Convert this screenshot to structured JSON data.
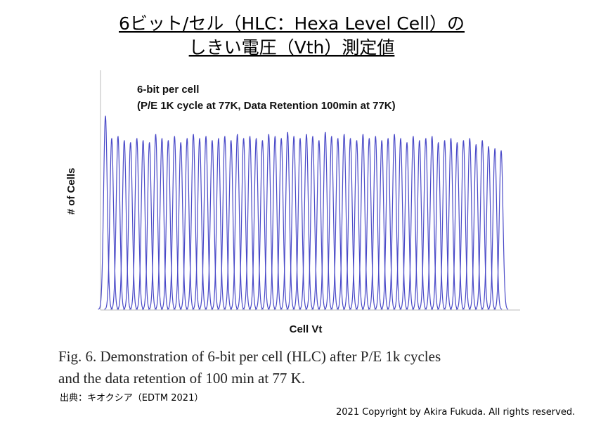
{
  "slide": {
    "title_line1": "6ビット/セル（HLC：Hexa Level Cell）の",
    "title_line2": "しきい電圧（Vth）測定値",
    "caption_line1": "Fig. 6. Demonstration of 6-bit per cell (HLC) after P/E 1k cycles",
    "caption_line2": "and the data retention of 100 min at 77 K.",
    "source": "出典：キオクシア（EDTM 2021）",
    "copyright": "2021 Copyright by Akira Fukuda. All rights reserved."
  },
  "chart_data": {
    "type": "line",
    "title": "6-bit per cell",
    "subtitle": "(P/E 1K cycle at 77K, Data Retention 100min at 77K)",
    "xlabel": "Cell Vt",
    "ylabel": "# of Cells",
    "ylim": [
      0,
      100
    ],
    "series": [
      {
        "color": "#4a4ac8",
        "values": [
          95,
          84,
          85,
          83,
          82,
          84,
          83,
          82,
          86,
          84,
          83,
          85,
          82,
          84,
          86,
          84,
          85,
          83,
          84,
          85,
          83,
          86,
          84,
          85,
          84,
          83,
          86,
          85,
          84,
          87,
          85,
          84,
          86,
          85,
          83,
          87,
          85,
          84,
          86,
          84,
          83,
          86,
          84,
          85,
          83,
          84,
          86,
          84,
          82,
          85,
          83,
          84,
          85,
          82,
          83,
          84,
          82,
          83,
          84,
          81,
          83,
          80,
          79,
          78
        ]
      }
    ]
  }
}
